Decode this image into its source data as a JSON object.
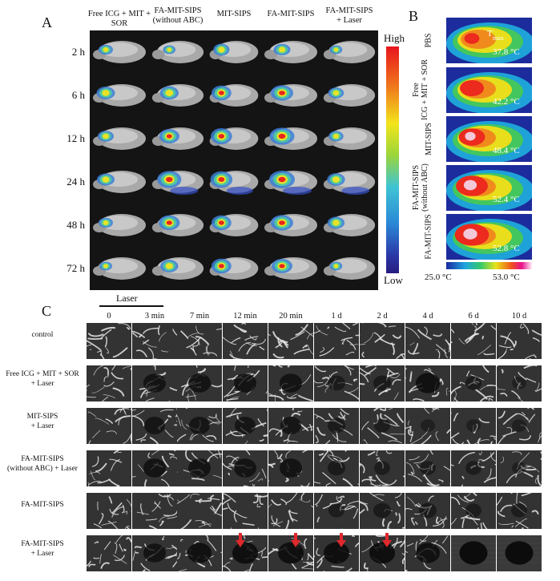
{
  "panelA": {
    "letter": "A",
    "columns": [
      "Free ICG + MIT + SOR",
      "FA-MIT-SIPS\n(without ABC)",
      "MIT-SIPS",
      "FA-MIT-SIPS",
      "FA-MIT-SIPS\n+ Laser"
    ],
    "rows": [
      "2 h",
      "6 h",
      "12 h",
      "24 h",
      "48 h",
      "72 h"
    ],
    "scale_high": "High",
    "scale_low": "Low",
    "signal_levels": [
      [
        0.3,
        0.2,
        0.5,
        0.45,
        0.2
      ],
      [
        0.55,
        0.6,
        0.75,
        0.8,
        0.4
      ],
      [
        0.4,
        0.7,
        0.85,
        0.95,
        0.35
      ],
      [
        0.5,
        0.95,
        0.9,
        1.0,
        0.55
      ],
      [
        0.3,
        0.75,
        0.75,
        0.8,
        0.5
      ],
      [
        0.2,
        0.55,
        0.75,
        0.7,
        0.2
      ]
    ]
  },
  "panelB": {
    "letter": "B",
    "rows": [
      {
        "label": "PBS",
        "temp": "37.8 °C",
        "tmax_label": "T"
      },
      {
        "label": "Free\nICG + MIT + SOR",
        "temp": "42.2 °C"
      },
      {
        "label": "MIT-SIPS",
        "temp": "48.4 °C"
      },
      {
        "label": "FA-MIT-SIPS\n(without ABC)",
        "temp": "52.4 °C"
      },
      {
        "label": "FA-MIT-SIPS",
        "temp": "52.8 °C"
      }
    ],
    "tmax_sub": "max",
    "scale_min": "25.0 °C",
    "scale_max": "53.0 °C"
  },
  "panelC": {
    "letter": "C",
    "laser_label": "Laser",
    "timepoints": [
      "0",
      "3 min",
      "7 min",
      "12 min",
      "20 min",
      "1 d",
      "2 d",
      "4 d",
      "6 d",
      "10 d"
    ],
    "rows": [
      "control",
      "Free ICG + MIT + SOR\n+ Laser",
      "MIT-SIPS\n+ Laser",
      "FA-MIT-SIPS\n(without ABC) + Laser",
      "FA-MIT-SIPS",
      "FA-MIT-SIPS\n+ Laser"
    ],
    "arrow_color": "#e0282d"
  }
}
